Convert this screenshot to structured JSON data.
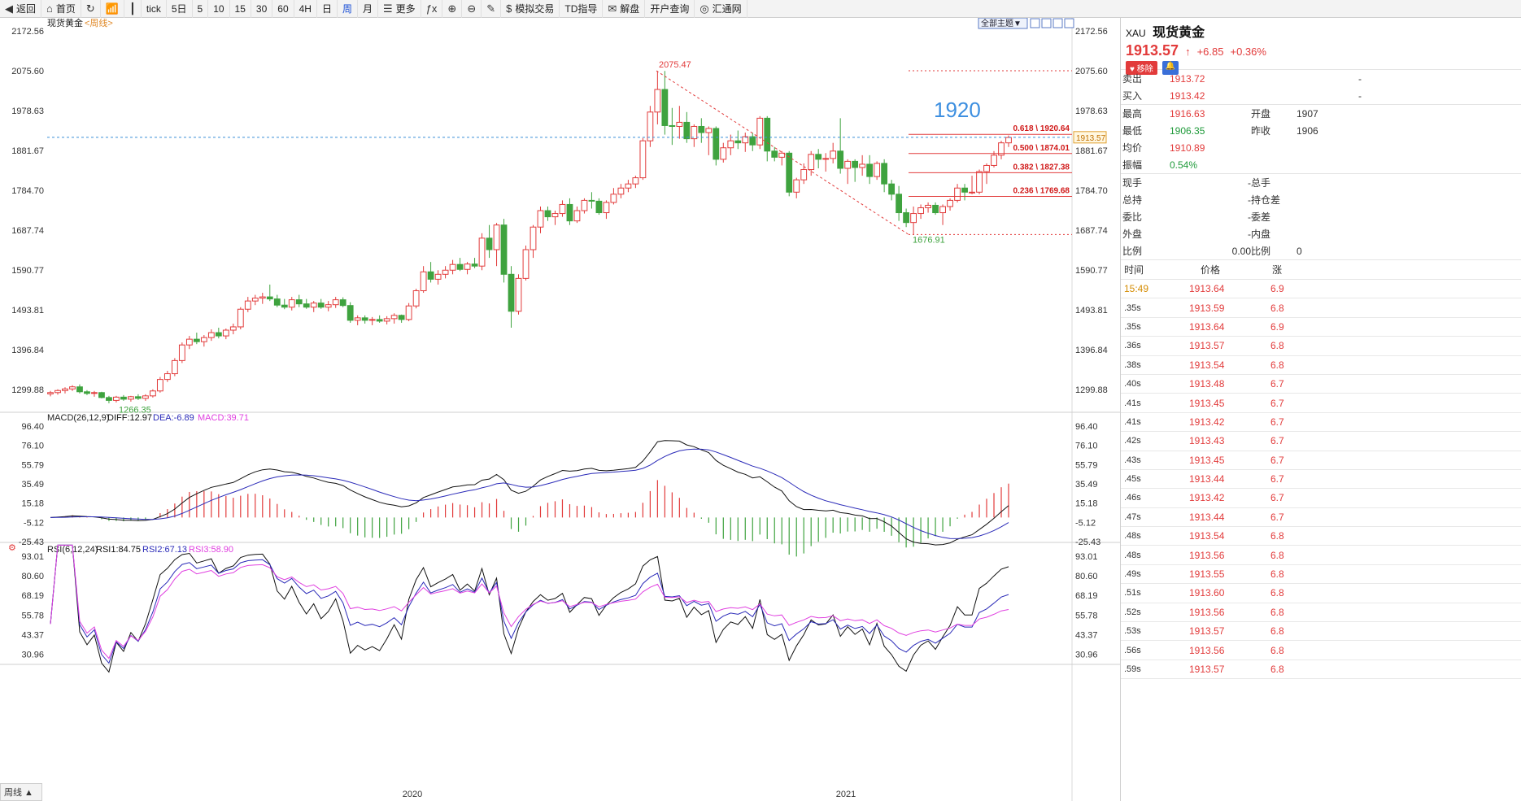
{
  "toolbar": [
    {
      "label": "返回",
      "icon": "back-icon"
    },
    {
      "label": "首页",
      "icon": "home-icon"
    },
    {
      "label": "",
      "icon": "refresh-icon"
    },
    {
      "label": "",
      "icon": "chart-type-icon"
    },
    {
      "label": "",
      "icon": "candle-icon"
    },
    {
      "label": "tick",
      "icon": ""
    },
    {
      "label": "5日",
      "icon": ""
    },
    {
      "label": "5",
      "icon": ""
    },
    {
      "label": "10",
      "icon": ""
    },
    {
      "label": "15",
      "icon": ""
    },
    {
      "label": "30",
      "icon": ""
    },
    {
      "label": "60",
      "icon": ""
    },
    {
      "label": "4H",
      "icon": ""
    },
    {
      "label": "日",
      "icon": ""
    },
    {
      "label": "周",
      "icon": ""
    },
    {
      "label": "月",
      "icon": ""
    },
    {
      "label": "更多",
      "icon": "more-icon"
    },
    {
      "label": "",
      "icon": "formula-icon"
    },
    {
      "label": "",
      "icon": "zoom-in-icon"
    },
    {
      "label": "",
      "icon": "zoom-out-icon"
    },
    {
      "label": "",
      "icon": "draw-icon"
    },
    {
      "label": "模拟交易",
      "icon": "dollar-icon"
    },
    {
      "label": "TD指导",
      "icon": ""
    },
    {
      "label": "解盘",
      "icon": "chat-icon"
    },
    {
      "label": "开户查询",
      "icon": ""
    },
    {
      "label": "汇通网",
      "icon": "logo-icon"
    }
  ],
  "chart": {
    "instrument": "现货黄金",
    "period": "<周线>",
    "filter_label": "全部主题▼",
    "price_axis": [
      "2172.56",
      "2075.60",
      "1978.63",
      "1881.67",
      "1784.70",
      "1687.74",
      "1590.77",
      "1493.81",
      "1396.84",
      "1299.88"
    ],
    "current_price_label": "1913.57",
    "high_label": "2075.47",
    "low_label_1": "1266.35",
    "low_label_2": "1676.91",
    "annotation": "1920",
    "fib_levels": [
      {
        "label": "0.618 \\ 1920.64",
        "value": 1920.64
      },
      {
        "label": "0.500 \\ 1874.01",
        "value": 1874.01
      },
      {
        "label": "0.382 \\ 1827.38",
        "value": 1827.38
      },
      {
        "label": "0.236 \\ 1769.68",
        "value": 1769.68
      }
    ],
    "x_labels": [
      "2020",
      "2021"
    ],
    "macd_header": {
      "name": "MACD(26,12,9)",
      "diff": "DIFF:12.97",
      "dea": "DEA:-6.89",
      "macd": "MACD:39.71"
    },
    "macd_axis": [
      "96.40",
      "76.10",
      "55.79",
      "35.49",
      "15.18",
      "-5.12",
      "-25.43"
    ],
    "rsi_header": {
      "name": "RSI(6,12,24)",
      "rsi1": "RSI1:84.75",
      "rsi2": "RSI2:67.13",
      "rsi3": "RSI3:58.90"
    },
    "rsi_axis": [
      "93.01",
      "80.60",
      "68.19",
      "55.78",
      "43.37",
      "30.96"
    ],
    "footer_tab": "周线 ▲",
    "colors": {
      "up": "#e23b3b",
      "down": "#3fa33f",
      "diff": "#111111",
      "dea": "#2a2ab8",
      "macd": "#e040e0",
      "annotation": "#3d8fe0"
    }
  },
  "quote": {
    "code": "XAU",
    "name": "现货黄金",
    "price": "1913.57",
    "arrow": "↑",
    "change": "+6.85",
    "change_pct": "+0.36%",
    "remove_btn": "移除",
    "rows_a": [
      {
        "l1": "卖出",
        "v1": "1913.72",
        "l2": "",
        "v2": "-"
      },
      {
        "l1": "买入",
        "v1": "1913.42",
        "l2": "",
        "v2": "-"
      }
    ],
    "rows_b": [
      {
        "l1": "最高",
        "v1": "1916.63",
        "l2": "开盘",
        "v2": "1907"
      },
      {
        "l1": "最低",
        "v1": "1906.35",
        "l2": "昨收",
        "v2": "1906"
      },
      {
        "l1": "均价",
        "v1": "1910.89",
        "l2": "",
        "v2": ""
      },
      {
        "l1": "振幅",
        "v1": "0.54%",
        "l2": "",
        "v2": ""
      }
    ],
    "rows_c": [
      {
        "l1": "现手",
        "v1": "-",
        "l2": "总手",
        "v2": ""
      },
      {
        "l1": "总持",
        "v1": "-",
        "l2": "持仓差",
        "v2": ""
      },
      {
        "l1": "委比",
        "v1": "-",
        "l2": "委差",
        "v2": ""
      },
      {
        "l1": "外盘",
        "v1": "-",
        "l2": "内盘",
        "v2": ""
      },
      {
        "l1": "比例",
        "v1": "0.00",
        "l2": "比例",
        "v2": "0"
      }
    ],
    "ticks_header": {
      "time": "时间",
      "price": "价格",
      "chg": "涨"
    },
    "ticks": [
      {
        "t": "15:49",
        "p": "1913.64",
        "v": "6.9"
      },
      {
        "t": ".35s",
        "p": "1913.59",
        "v": "6.8"
      },
      {
        "t": ".35s",
        "p": "1913.64",
        "v": "6.9"
      },
      {
        "t": ".36s",
        "p": "1913.57",
        "v": "6.8"
      },
      {
        "t": ".38s",
        "p": "1913.54",
        "v": "6.8"
      },
      {
        "t": ".40s",
        "p": "1913.48",
        "v": "6.7"
      },
      {
        "t": ".41s",
        "p": "1913.45",
        "v": "6.7"
      },
      {
        "t": ".41s",
        "p": "1913.42",
        "v": "6.7"
      },
      {
        "t": ".42s",
        "p": "1913.43",
        "v": "6.7"
      },
      {
        "t": ".43s",
        "p": "1913.45",
        "v": "6.7"
      },
      {
        "t": ".45s",
        "p": "1913.44",
        "v": "6.7"
      },
      {
        "t": ".46s",
        "p": "1913.42",
        "v": "6.7"
      },
      {
        "t": ".47s",
        "p": "1913.44",
        "v": "6.7"
      },
      {
        "t": ".48s",
        "p": "1913.54",
        "v": "6.8"
      },
      {
        "t": ".48s",
        "p": "1913.56",
        "v": "6.8"
      },
      {
        "t": ".49s",
        "p": "1913.55",
        "v": "6.8"
      },
      {
        "t": ".51s",
        "p": "1913.60",
        "v": "6.8"
      },
      {
        "t": ".52s",
        "p": "1913.56",
        "v": "6.8"
      },
      {
        "t": ".53s",
        "p": "1913.57",
        "v": "6.8"
      },
      {
        "t": ".56s",
        "p": "1913.56",
        "v": "6.8"
      },
      {
        "t": ".59s",
        "p": "1913.57",
        "v": "6.8"
      }
    ]
  },
  "candles": [
    [
      1289,
      1296,
      1283,
      1292
    ],
    [
      1292,
      1300,
      1287,
      1297
    ],
    [
      1297,
      1305,
      1290,
      1301
    ],
    [
      1301,
      1310,
      1296,
      1306
    ],
    [
      1306,
      1312,
      1290,
      1294
    ],
    [
      1294,
      1298,
      1286,
      1290
    ],
    [
      1290,
      1296,
      1282,
      1292
    ],
    [
      1292,
      1294,
      1278,
      1280
    ],
    [
      1280,
      1284,
      1266,
      1273
    ],
    [
      1273,
      1284,
      1268,
      1281
    ],
    [
      1281,
      1286,
      1272,
      1276
    ],
    [
      1276,
      1284,
      1270,
      1282
    ],
    [
      1282,
      1288,
      1274,
      1278
    ],
    [
      1278,
      1288,
      1272,
      1284
    ],
    [
      1284,
      1300,
      1280,
      1296
    ],
    [
      1296,
      1330,
      1292,
      1324
    ],
    [
      1324,
      1345,
      1318,
      1338
    ],
    [
      1338,
      1376,
      1332,
      1370
    ],
    [
      1370,
      1414,
      1364,
      1408
    ],
    [
      1408,
      1430,
      1398,
      1422
    ],
    [
      1422,
      1438,
      1410,
      1416
    ],
    [
      1416,
      1432,
      1404,
      1426
    ],
    [
      1426,
      1446,
      1418,
      1438
    ],
    [
      1438,
      1450,
      1424,
      1430
    ],
    [
      1430,
      1448,
      1422,
      1444
    ],
    [
      1444,
      1460,
      1434,
      1452
    ],
    [
      1452,
      1500,
      1446,
      1495
    ],
    [
      1495,
      1525,
      1488,
      1515
    ],
    [
      1515,
      1530,
      1505,
      1522
    ],
    [
      1522,
      1535,
      1508,
      1525
    ],
    [
      1525,
      1555,
      1515,
      1520
    ],
    [
      1520,
      1530,
      1500,
      1505
    ],
    [
      1505,
      1520,
      1495,
      1500
    ],
    [
      1500,
      1525,
      1492,
      1518
    ],
    [
      1518,
      1530,
      1500,
      1508
    ],
    [
      1508,
      1520,
      1496,
      1500
    ],
    [
      1500,
      1515,
      1488,
      1510
    ],
    [
      1510,
      1520,
      1496,
      1500
    ],
    [
      1500,
      1515,
      1490,
      1506
    ],
    [
      1506,
      1525,
      1498,
      1518
    ],
    [
      1518,
      1524,
      1500,
      1504
    ],
    [
      1504,
      1512,
      1462,
      1468
    ],
    [
      1468,
      1480,
      1456,
      1474
    ],
    [
      1474,
      1480,
      1460,
      1468
    ],
    [
      1468,
      1476,
      1456,
      1470
    ],
    [
      1470,
      1480,
      1462,
      1466
    ],
    [
      1466,
      1478,
      1458,
      1472
    ],
    [
      1472,
      1485,
      1460,
      1480
    ],
    [
      1480,
      1482,
      1462,
      1470
    ],
    [
      1470,
      1510,
      1466,
      1503
    ],
    [
      1503,
      1545,
      1497,
      1540
    ],
    [
      1540,
      1600,
      1535,
      1586
    ],
    [
      1586,
      1610,
      1560,
      1568
    ],
    [
      1568,
      1590,
      1555,
      1580
    ],
    [
      1580,
      1600,
      1570,
      1590
    ],
    [
      1590,
      1615,
      1580,
      1604
    ],
    [
      1604,
      1620,
      1588,
      1592
    ],
    [
      1592,
      1610,
      1580,
      1605
    ],
    [
      1605,
      1620,
      1595,
      1600
    ],
    [
      1600,
      1680,
      1590,
      1668
    ],
    [
      1668,
      1700,
      1620,
      1640
    ],
    [
      1640,
      1705,
      1600,
      1700
    ],
    [
      1700,
      1715,
      1560,
      1580
    ],
    [
      1580,
      1600,
      1450,
      1490
    ],
    [
      1490,
      1580,
      1482,
      1570
    ],
    [
      1570,
      1650,
      1565,
      1640
    ],
    [
      1640,
      1700,
      1620,
      1695
    ],
    [
      1695,
      1745,
      1680,
      1735
    ],
    [
      1735,
      1745,
      1710,
      1720
    ],
    [
      1720,
      1735,
      1700,
      1728
    ],
    [
      1728,
      1760,
      1720,
      1750
    ],
    [
      1750,
      1765,
      1700,
      1710
    ],
    [
      1710,
      1745,
      1705,
      1735
    ],
    [
      1735,
      1765,
      1728,
      1760
    ],
    [
      1760,
      1780,
      1740,
      1758
    ],
    [
      1758,
      1765,
      1725,
      1730
    ],
    [
      1730,
      1760,
      1715,
      1755
    ],
    [
      1755,
      1790,
      1750,
      1775
    ],
    [
      1775,
      1800,
      1765,
      1790
    ],
    [
      1790,
      1810,
      1780,
      1800
    ],
    [
      1800,
      1820,
      1790,
      1815
    ],
    [
      1815,
      1912,
      1810,
      1905
    ],
    [
      1905,
      1990,
      1890,
      1975
    ],
    [
      1975,
      2075,
      1945,
      2030
    ],
    [
      2030,
      2075,
      1920,
      1942
    ],
    [
      1942,
      1985,
      1895,
      1940
    ],
    [
      1940,
      1990,
      1910,
      1950
    ],
    [
      1950,
      1975,
      1900,
      1910
    ],
    [
      1910,
      1945,
      1890,
      1940
    ],
    [
      1940,
      1960,
      1900,
      1925
    ],
    [
      1925,
      1940,
      1870,
      1935
    ],
    [
      1935,
      1940,
      1845,
      1860
    ],
    [
      1860,
      1900,
      1852,
      1888
    ],
    [
      1888,
      1920,
      1870,
      1905
    ],
    [
      1905,
      1930,
      1885,
      1900
    ],
    [
      1900,
      1925,
      1878,
      1915
    ],
    [
      1915,
      1925,
      1880,
      1895
    ],
    [
      1895,
      1965,
      1885,
      1960
    ],
    [
      1960,
      1965,
      1855,
      1880
    ],
    [
      1880,
      1890,
      1855,
      1865
    ],
    [
      1865,
      1880,
      1845,
      1875
    ],
    [
      1875,
      1880,
      1770,
      1780
    ],
    [
      1780,
      1815,
      1765,
      1810
    ],
    [
      1810,
      1850,
      1800,
      1835
    ],
    [
      1835,
      1880,
      1820,
      1872
    ],
    [
      1872,
      1885,
      1838,
      1860
    ],
    [
      1860,
      1875,
      1830,
      1862
    ],
    [
      1862,
      1900,
      1850,
      1880
    ],
    [
      1880,
      1960,
      1825,
      1838
    ],
    [
      1838,
      1860,
      1800,
      1855
    ],
    [
      1855,
      1860,
      1805,
      1840
    ],
    [
      1840,
      1870,
      1820,
      1848
    ],
    [
      1848,
      1870,
      1800,
      1818
    ],
    [
      1818,
      1855,
      1810,
      1850
    ],
    [
      1850,
      1860,
      1780,
      1800
    ],
    [
      1800,
      1810,
      1760,
      1775
    ],
    [
      1775,
      1795,
      1710,
      1730
    ],
    [
      1730,
      1740,
      1695,
      1706
    ],
    [
      1706,
      1745,
      1677,
      1728
    ],
    [
      1728,
      1750,
      1715,
      1742
    ],
    [
      1742,
      1755,
      1730,
      1748
    ],
    [
      1748,
      1755,
      1725,
      1730
    ],
    [
      1730,
      1750,
      1700,
      1745
    ],
    [
      1745,
      1765,
      1735,
      1760
    ],
    [
      1760,
      1800,
      1755,
      1790
    ],
    [
      1790,
      1800,
      1760,
      1780
    ],
    [
      1780,
      1820,
      1775,
      1780
    ],
    [
      1780,
      1835,
      1775,
      1830
    ],
    [
      1830,
      1850,
      1800,
      1845
    ],
    [
      1845,
      1880,
      1840,
      1870
    ],
    [
      1870,
      1905,
      1860,
      1900
    ],
    [
      1900,
      1918,
      1890,
      1913
    ]
  ]
}
